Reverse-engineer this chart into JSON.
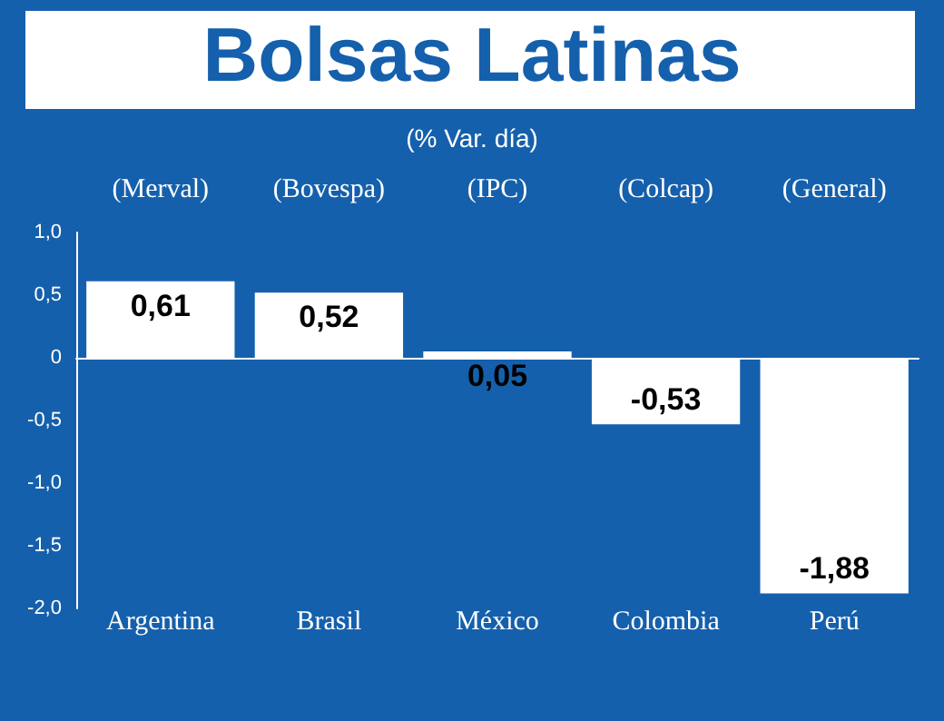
{
  "chart_data": {
    "type": "bar",
    "title": "Bolsas Latinas",
    "subtitle": "(% Var. día)",
    "categories": [
      "Argentina",
      "Brasil",
      "México",
      "Colombia",
      "Perú"
    ],
    "annotations": [
      "(Merval)",
      "(Bovespa)",
      "(IPC)",
      "(Colcap)",
      "(General)"
    ],
    "values": [
      0.61,
      0.52,
      0.05,
      -0.53,
      -1.88
    ],
    "value_labels": [
      "0,61",
      "0,52",
      "0,05",
      "-0,53",
      "-1,88"
    ],
    "color": "#ffffff",
    "ylim": [
      -2,
      1
    ],
    "yticks": [
      {
        "value": -2,
        "label": "-2,0"
      },
      {
        "value": -1.5,
        "label": "-1,5"
      },
      {
        "value": -1,
        "label": "-1,0"
      },
      {
        "value": -0.5,
        "label": "-0,5"
      },
      0,
      {
        "value": 0.5,
        "label": "0,5"
      },
      {
        "value": 1,
        "label": "1,0"
      }
    ]
  }
}
